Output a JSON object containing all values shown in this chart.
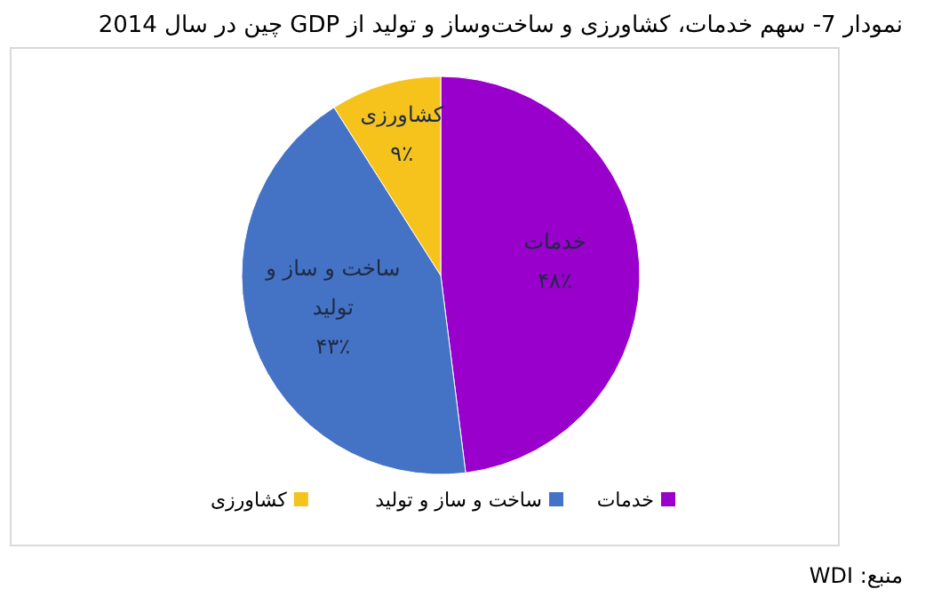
{
  "chart_data": {
    "type": "pie",
    "title": "نمودار 7- سهم خدمات، کشاورزی و ساخت‌وساز و تولید از GDP چین در سال 2014",
    "categories": [
      "خدمات",
      "ساخت و ساز و تولید",
      "کشاورزی"
    ],
    "values": [
      48,
      43,
      9
    ],
    "colors": [
      "#9900cc",
      "#4472c4",
      "#f5c31c"
    ],
    "value_labels": [
      "۴۸٪",
      "۴۳٪",
      "۹٪"
    ],
    "legend": "bottom",
    "annotations": [
      "منبع: WDI"
    ]
  }
}
